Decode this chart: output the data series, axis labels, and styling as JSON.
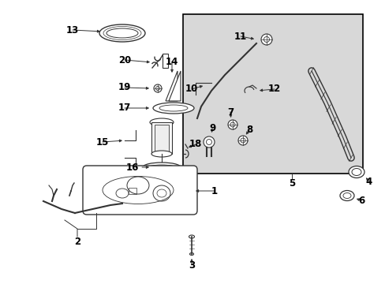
{
  "bg_color": "#ffffff",
  "inset_bg": "#d8d8d8",
  "line_color": "#333333",
  "label_fontsize": 8.5
}
